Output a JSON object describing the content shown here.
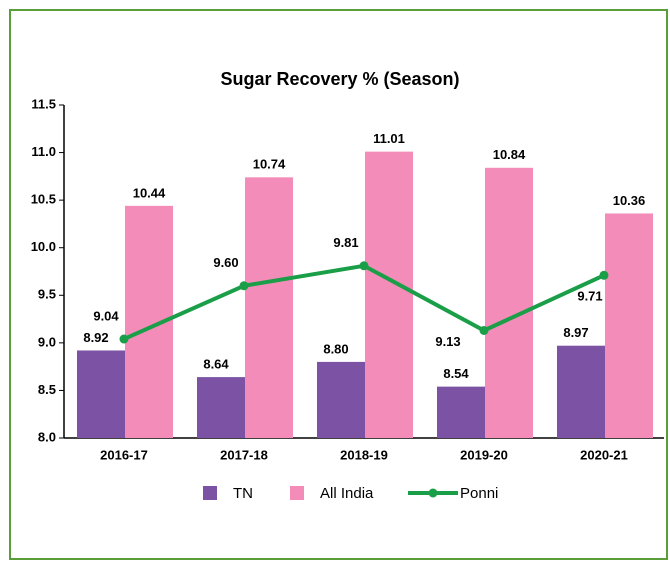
{
  "chart_data": {
    "type": "bar-line",
    "title": "Sugar Recovery % (Season)",
    "categories": [
      "2016-17",
      "2017-18",
      "2018-19",
      "2019-20",
      "2020-21"
    ],
    "series": [
      {
        "name": "TN",
        "type": "bar",
        "color": "#7b52a4",
        "values": [
          8.92,
          8.64,
          8.8,
          8.54,
          8.97
        ],
        "value_labels": [
          "8.92",
          "8.64",
          "8.80",
          "8.54",
          "8.97"
        ]
      },
      {
        "name": "All India",
        "type": "bar",
        "color": "#f48cba",
        "values": [
          10.44,
          10.74,
          11.01,
          10.84,
          10.36
        ],
        "value_labels": [
          "10.44",
          "10.74",
          "11.01",
          "10.84",
          "10.36"
        ]
      },
      {
        "name": "Ponni",
        "type": "line",
        "color": "#1a9e48",
        "values": [
          9.04,
          9.6,
          9.81,
          9.13,
          9.71
        ],
        "value_labels": [
          "9.04",
          "9.60",
          "9.81",
          "9.13",
          "9.71"
        ]
      }
    ],
    "ylim": [
      8,
      11.5
    ],
    "yticks": [
      {
        "value": 8,
        "label": "8.0"
      },
      8.5,
      {
        "value": 9,
        "label": "9.0"
      },
      9.5,
      {
        "value": 10,
        "label": "10.0"
      },
      10.5,
      {
        "value": 11,
        "label": "11.0"
      },
      11.5
    ],
    "grid": false,
    "legend": "bottom"
  }
}
